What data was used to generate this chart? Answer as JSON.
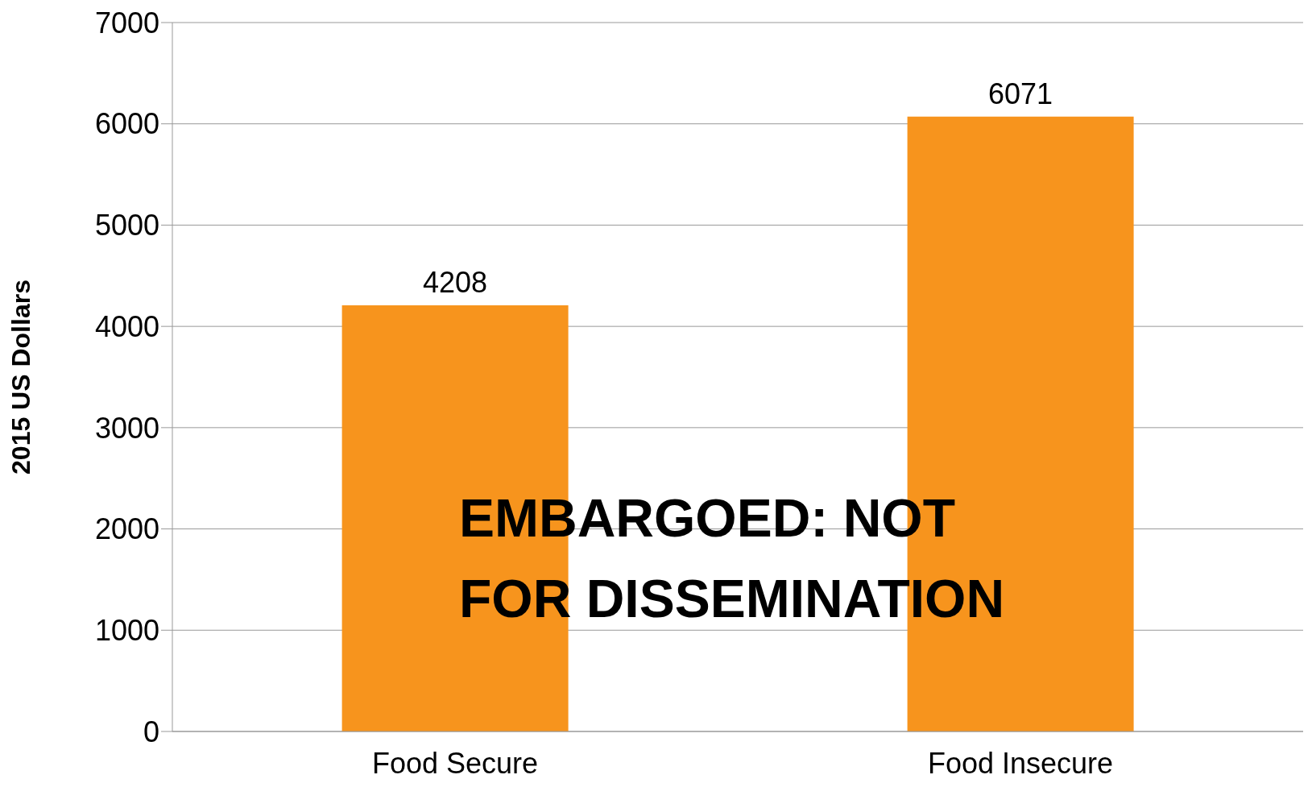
{
  "chart_data": {
    "type": "bar",
    "ylabel": "2015 US Dollars",
    "categories": [
      "Food Secure",
      "Food Insecure"
    ],
    "values": [
      4208,
      6071
    ],
    "color": "#f7941d",
    "ylim": [
      0,
      7000
    ],
    "yticks": [
      0,
      1000,
      2000,
      3000,
      4000,
      5000,
      6000,
      7000
    ],
    "grid": "y",
    "data_labels": true,
    "annotations": [
      "EMBARGOED: NOT FOR DISSEMINATION"
    ]
  }
}
